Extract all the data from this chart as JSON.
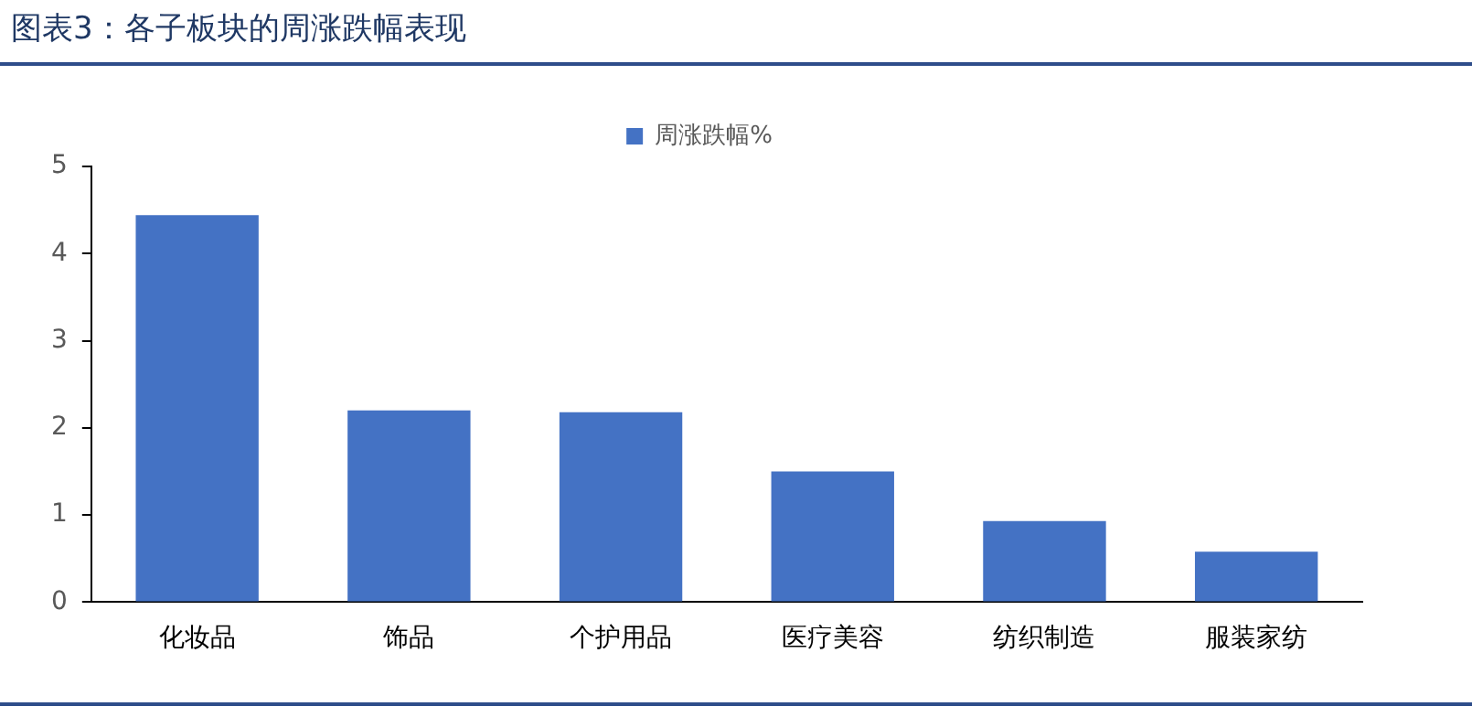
{
  "chart_data": {
    "type": "bar",
    "title": "图表3：各子板块的周涨跌幅表现",
    "categories": [
      "化妆品",
      "饰品",
      "个护用品",
      "医疗美容",
      "纺织制造",
      "服装家纺"
    ],
    "series": [
      {
        "name": "周涨跌幅%",
        "color": "#4472c4",
        "values": [
          4.44,
          2.2,
          2.18,
          1.5,
          0.93,
          0.58
        ]
      }
    ],
    "ylim": [
      0,
      5
    ],
    "yticks": [
      0,
      1,
      2,
      3,
      4,
      5
    ],
    "grid": false,
    "legend": "top"
  }
}
